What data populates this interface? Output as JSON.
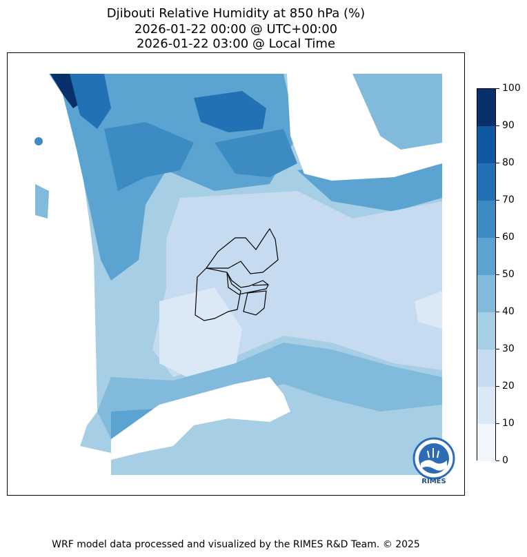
{
  "title": {
    "line1": "Djibouti Relative Humidity at 850 hPa (%)",
    "line2": "2026-01-22 00:00 @ UTC+00:00",
    "line3": "2026-01-22 03:00 @ Local Time"
  },
  "colorbar": {
    "ticks": [
      "0",
      "10",
      "20",
      "30",
      "40",
      "50",
      "60",
      "70",
      "80",
      "90",
      "100"
    ],
    "colors": [
      "#f0f6fc",
      "#dbe9f6",
      "#c6dbef",
      "#a6cee4",
      "#82badb",
      "#5ba3d1",
      "#3d8bc3",
      "#2271b5",
      "#0f59a3",
      "#08306b"
    ]
  },
  "logo": {
    "name": "RIMES"
  },
  "footer": "WRF model data processed and visualized by the RIMES R&D Team. © 2025"
}
